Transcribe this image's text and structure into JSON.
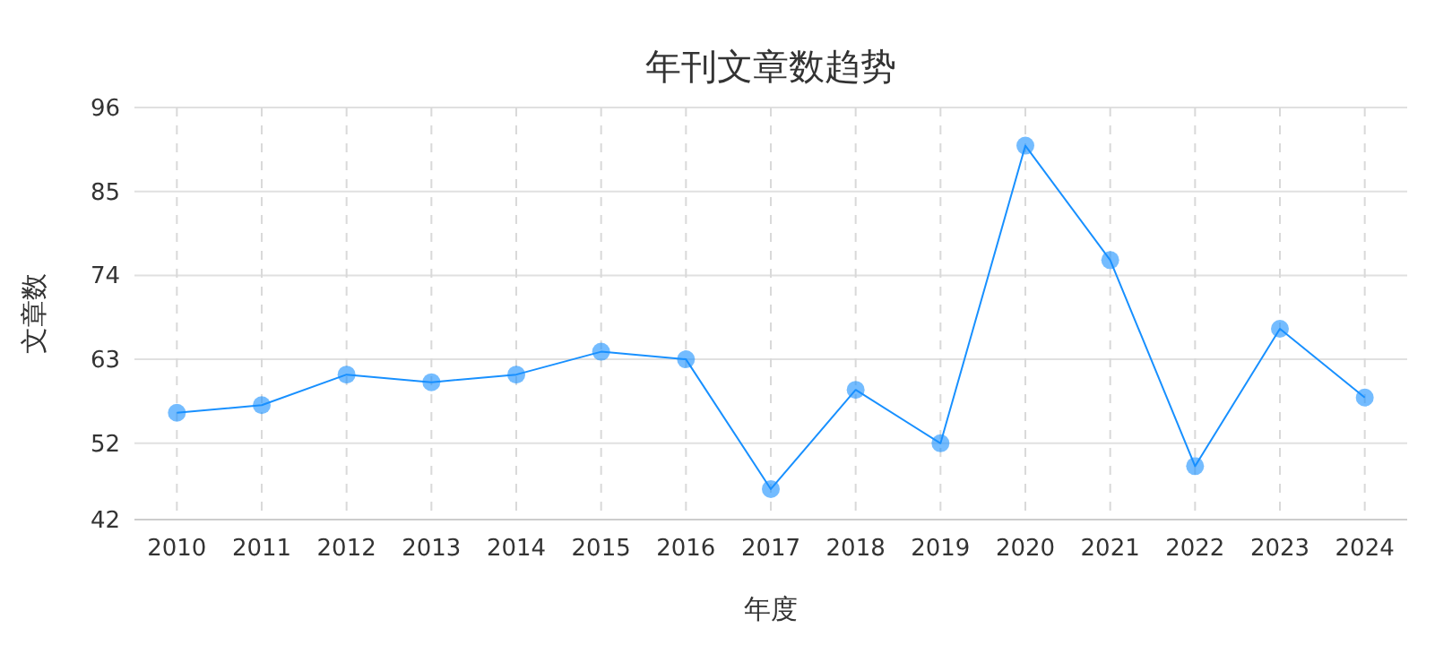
{
  "chart_data": {
    "type": "line",
    "title": "年刊文章数趋势",
    "xlabel": "年度",
    "ylabel": "文章数",
    "categories": [
      "2010",
      "2011",
      "2012",
      "2013",
      "2014",
      "2015",
      "2016",
      "2017",
      "2018",
      "2019",
      "2020",
      "2021",
      "2022",
      "2023",
      "2024"
    ],
    "series": [
      {
        "color": "#1890ff",
        "values": [
          56,
          57,
          61,
          60,
          61,
          64,
          63,
          46,
          59,
          52,
          91,
          76,
          49,
          67,
          58
        ]
      }
    ],
    "ylim": [
      42,
      96
    ],
    "yticks": [
      42,
      52,
      63,
      74,
      85,
      96
    ],
    "grid": true,
    "marker": "circle",
    "line_style": "solid"
  }
}
